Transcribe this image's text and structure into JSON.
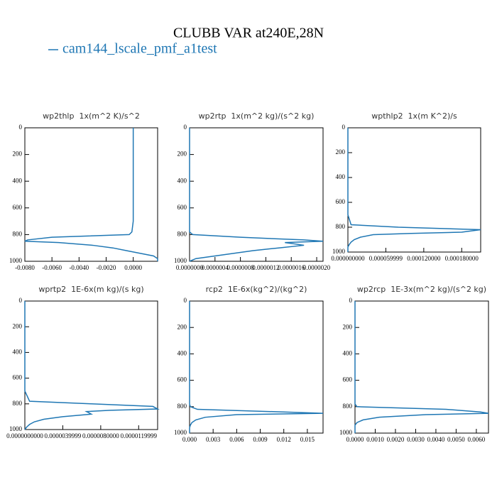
{
  "title": "CLUBB VAR at240E,28N",
  "legend": [
    "cam144_lscale_pmf_a1test"
  ],
  "chart_data": [
    {
      "type": "line",
      "title": "wp2thlp  1x(m^2 K)/s^2",
      "y": [
        0,
        200,
        400,
        600,
        700,
        780,
        800,
        820,
        840,
        850,
        860,
        880,
        900,
        920,
        940,
        960,
        980,
        1000
      ],
      "series": [
        {
          "color": "#1f77b4",
          "values": [
            0,
            0,
            0,
            0,
            0,
            -0.0001,
            -0.0003,
            -0.006,
            -0.0078,
            -0.008,
            -0.0055,
            -0.003,
            -0.0015,
            -0.0005,
            0.0005,
            0.0015,
            0.0018,
            0.0018
          ]
        }
      ],
      "xlim": [
        -0.008,
        0.0018
      ],
      "xticks": [
        {
          "value": -0.008,
          "label": "-0.0080"
        },
        {
          "value": -0.006,
          "label": "-0.0060"
        },
        {
          "value": -0.004,
          "label": "-0.0040"
        },
        {
          "value": -0.002,
          "label": "-0.0020"
        },
        {
          "value": 0,
          "label": "0.0000"
        }
      ],
      "ylim": [
        1000,
        0
      ],
      "yticks": [
        0,
        200,
        400,
        600,
        800,
        1000
      ]
    },
    {
      "type": "line",
      "title": "wp2rtp  1x(m^2 kg)/(s^2 kg)",
      "y": [
        0,
        200,
        400,
        600,
        700,
        780,
        800,
        820,
        840,
        850,
        860,
        880,
        900,
        920,
        940,
        960,
        980,
        1000
      ],
      "series": [
        {
          "color": "#1f77b4",
          "values": [
            0,
            0,
            0,
            0,
            0,
            0,
            5e-08,
            8e-07,
            1.8e-06,
            2.1e-06,
            1.5e-06,
            1.8e-06,
            1.4e-06,
            1e-06,
            7e-07,
            4e-07,
            1e-07,
            0
          ]
        }
      ],
      "xlim": [
        0,
        2.1e-06
      ],
      "xticks": [
        {
          "value": 0,
          "label": "0.0000000"
        },
        {
          "value": 4e-07,
          "label": "0.0000004"
        },
        {
          "value": 8e-07,
          "label": "0.0000008"
        },
        {
          "value": 1.2e-06,
          "label": "0.0000012"
        },
        {
          "value": 1.6e-06,
          "label": "0.0000016"
        },
        {
          "value": 2e-06,
          "label": "0.0000020"
        }
      ],
      "ylim": [
        1000,
        0
      ],
      "yticks": [
        0,
        200,
        400,
        600,
        800,
        1000
      ]
    },
    {
      "type": "line",
      "title": "wpthlp2  1x(m K^2)/s",
      "y": [
        0,
        200,
        400,
        600,
        700,
        780,
        800,
        820,
        840,
        850,
        860,
        880,
        900,
        920,
        940,
        960,
        980,
        1000
      ],
      "series": [
        {
          "color": "#1f77b4",
          "values": [
            0,
            0,
            0,
            0,
            0,
            5e-06,
            8e-05,
            0.00021,
            0.00018,
            0.0001,
            4e-05,
            2e-05,
            1e-05,
            5e-06,
            2e-06,
            0,
            0,
            0
          ]
        }
      ],
      "xlim": [
        0,
        0.00021
      ],
      "xticks": [
        {
          "value": 0,
          "label": "0.000000000"
        },
        {
          "value": 6e-05,
          "label": "0.000059999"
        },
        {
          "value": 0.00012,
          "label": "0.000120000"
        },
        {
          "value": 0.00018,
          "label": "0.000180000"
        }
      ],
      "ylim": [
        1000,
        0
      ],
      "yticks": [
        0,
        200,
        400,
        600,
        800,
        1000
      ]
    },
    {
      "type": "line",
      "title": "wprtp2  1E-6x(m kg)/(s kg)",
      "y": [
        0,
        200,
        400,
        600,
        700,
        780,
        800,
        820,
        840,
        850,
        860,
        880,
        900,
        920,
        940,
        960,
        980,
        1000
      ],
      "series": [
        {
          "color": "#1f77b4",
          "values": [
            0,
            0,
            0,
            0,
            0,
            5e-07,
            7e-06,
            1.35e-05,
            1.4e-05,
            9e-06,
            6.5e-06,
            7e-06,
            4e-06,
            2e-06,
            1e-06,
            5e-07,
            2e-07,
            0
          ]
        }
      ],
      "xlim": [
        0,
        1.4e-05
      ],
      "xticks": [
        {
          "value": 0,
          "label": "0.0000000000"
        },
        {
          "value": 4e-06,
          "label": "0.0000039999"
        },
        {
          "value": 8e-06,
          "label": "0.0000080000"
        },
        {
          "value": 1.2e-05,
          "label": "0.0000119999"
        }
      ],
      "ylim": [
        1000,
        0
      ],
      "yticks": [
        0,
        200,
        400,
        600,
        800,
        1000
      ]
    },
    {
      "type": "line",
      "title": "rcp2  1E-6x(kg^2)/(kg^2)",
      "y": [
        0,
        200,
        400,
        600,
        700,
        780,
        800,
        820,
        840,
        850,
        860,
        880,
        900,
        920,
        940,
        960,
        980,
        1000
      ],
      "series": [
        {
          "color": "#1f77b4",
          "values": [
            0,
            0,
            0,
            0,
            0,
            0,
            0.0001,
            0.001,
            0.012,
            0.017,
            0.006,
            0.002,
            0.0008,
            0.0003,
            0.0001,
            0,
            0,
            0
          ]
        }
      ],
      "xlim": [
        0,
        0.017
      ],
      "xticks": [
        {
          "value": 0,
          "label": "0.000"
        },
        {
          "value": 0.003,
          "label": "0.003"
        },
        {
          "value": 0.006,
          "label": "0.006"
        },
        {
          "value": 0.009,
          "label": "0.009"
        },
        {
          "value": 0.012,
          "label": "0.012"
        },
        {
          "value": 0.015,
          "label": "0.015"
        }
      ],
      "ylim": [
        1000,
        0
      ],
      "yticks": [
        0,
        200,
        400,
        600,
        800,
        1000
      ]
    },
    {
      "type": "line",
      "title": "wp2rcp  1E-3x(m^2 kg)/(s^2 kg)",
      "y": [
        0,
        200,
        400,
        600,
        700,
        780,
        800,
        820,
        840,
        850,
        860,
        880,
        900,
        920,
        940,
        960,
        980,
        1000
      ],
      "series": [
        {
          "color": "#1f77b4",
          "values": [
            0,
            0,
            0,
            0,
            0,
            0,
            0.0001,
            0.0045,
            0.0062,
            0.0066,
            0.0035,
            0.0012,
            0.0004,
            0.0001,
            0,
            0,
            0,
            0
          ]
        }
      ],
      "xlim": [
        0,
        0.0066
      ],
      "xticks": [
        {
          "value": 0,
          "label": "0.0000"
        },
        {
          "value": 0.001,
          "label": "0.0010"
        },
        {
          "value": 0.002,
          "label": "0.0020"
        },
        {
          "value": 0.003,
          "label": "0.0030"
        },
        {
          "value": 0.004,
          "label": "0.0040"
        },
        {
          "value": 0.005,
          "label": "0.0050"
        },
        {
          "value": 0.006,
          "label": "0.0060"
        }
      ],
      "ylim": [
        1000,
        0
      ],
      "yticks": [
        0,
        200,
        400,
        600,
        800,
        1000
      ]
    }
  ]
}
